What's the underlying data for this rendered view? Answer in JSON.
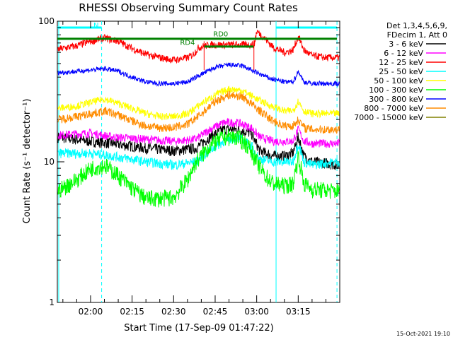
{
  "chart_data": {
    "type": "line",
    "title": "RHESSI Observing Summary Count Rates",
    "xlabel": "Start Time (17-Sep-09 01:47:22)",
    "ylabel": "Count Rate (s⁻¹ detector⁻¹)",
    "yscale": "log",
    "ylim": [
      1,
      100
    ],
    "xlim_minutes": [
      108,
      210
    ],
    "x_tick_labels": [
      "02:00",
      "02:15",
      "02:30",
      "02:45",
      "03:00",
      "03:15"
    ],
    "x_ticks_minutes": [
      120,
      135,
      150,
      165,
      180,
      195
    ],
    "y_tick_labels": [
      "1",
      "10",
      "100"
    ],
    "y_ticks": [
      1,
      10,
      100
    ],
    "legend_header": [
      "Det 1,3,4,5,6,9,",
      "FDecim 1, Att 0"
    ],
    "legend_placement": "right",
    "series": [
      {
        "name": "3 - 6 keV",
        "color": "#000000",
        "x": [
          108,
          120,
          128,
          140,
          150,
          158,
          163,
          168,
          173,
          178,
          181,
          186,
          190,
          193,
          195,
          197,
          200,
          205,
          209
        ],
        "y": [
          15,
          14,
          13.5,
          12.5,
          12,
          12.5,
          15,
          17,
          17,
          16,
          12,
          11,
          11,
          11.5,
          15,
          11,
          10,
          9.8,
          9.5
        ]
      },
      {
        "name": "6 - 12 keV",
        "color": "#ff00ff",
        "x": [
          108,
          120,
          128,
          140,
          150,
          158,
          163,
          168,
          173,
          178,
          181,
          186,
          190,
          193,
          195,
          197,
          200,
          205,
          209
        ],
        "y": [
          15.5,
          16,
          15,
          14.5,
          14,
          14.5,
          17,
          19,
          19,
          17.5,
          15,
          14,
          14,
          14,
          17,
          14,
          13.5,
          13.5,
          13.5
        ]
      },
      {
        "name": "12 - 25 keV",
        "color": "#ff0000",
        "x": [
          108,
          115,
          120,
          125,
          130,
          135,
          140,
          145,
          150,
          155,
          157,
          159,
          163,
          170,
          175,
          179,
          180,
          183,
          186,
          190,
          193,
          195,
          197,
          200,
          205,
          209
        ],
        "y": [
          63,
          67,
          72,
          76,
          72,
          64,
          58,
          55,
          53,
          55,
          58,
          65,
          68,
          68,
          68,
          68,
          85,
          75,
          65,
          60,
          62,
          78,
          62,
          57,
          55,
          55
        ]
      },
      {
        "name": "25 - 50 keV",
        "color": "#00ffff",
        "x": [
          108,
          120,
          128,
          140,
          150,
          158,
          163,
          168,
          173,
          178,
          181,
          186,
          190,
          193,
          195,
          197,
          200,
          205,
          209
        ],
        "y": [
          11.5,
          11.5,
          11,
          10,
          9.5,
          10,
          12,
          14,
          15,
          13,
          10.5,
          10,
          10,
          10,
          13.5,
          10,
          9.5,
          9.8,
          10
        ]
      },
      {
        "name": "50 - 100 keV",
        "color": "#ffff00",
        "x": [
          108,
          115,
          120,
          125,
          130,
          135,
          140,
          145,
          150,
          155,
          160,
          165,
          170,
          175,
          180,
          185,
          190,
          193,
          195,
          197,
          200,
          205,
          209
        ],
        "y": [
          24,
          25,
          26.5,
          28,
          26,
          24,
          22,
          21,
          21,
          22,
          26,
          30,
          33,
          32,
          28,
          25,
          23,
          23,
          27,
          23,
          22,
          22,
          22
        ]
      },
      {
        "name": "100 - 300 keV",
        "color": "#00ff00",
        "x": [
          108,
          115,
          120,
          125,
          130,
          135,
          140,
          145,
          150,
          155,
          158,
          163,
          168,
          173,
          177,
          180,
          183,
          186,
          190,
          193,
          195,
          197,
          200,
          205,
          209
        ],
        "y": [
          6.2,
          7.5,
          9,
          9.5,
          8,
          6.5,
          5.5,
          5.5,
          5.6,
          7.5,
          10,
          13,
          15,
          15,
          13,
          10,
          8,
          7,
          6.8,
          7,
          11,
          7,
          6.4,
          6.3,
          6.2
        ]
      },
      {
        "name": "300 - 800 keV",
        "color": "#0000ff",
        "x": [
          108,
          115,
          120,
          125,
          130,
          135,
          140,
          145,
          150,
          155,
          160,
          165,
          170,
          175,
          180,
          185,
          190,
          193,
          195,
          197,
          200,
          205,
          209
        ],
        "y": [
          43,
          44,
          45,
          46,
          44,
          40,
          37,
          36,
          36,
          37,
          42,
          47,
          49,
          48,
          43,
          39,
          37,
          37,
          44,
          37,
          36,
          36,
          36
        ]
      },
      {
        "name": "800 - 7000 keV",
        "color": "#ff8c00",
        "x": [
          108,
          115,
          120,
          125,
          130,
          135,
          140,
          145,
          150,
          155,
          160,
          165,
          170,
          175,
          180,
          185,
          190,
          193,
          195,
          197,
          200,
          205,
          209
        ],
        "y": [
          20,
          21,
          22,
          23,
          21.5,
          19.5,
          18,
          17.5,
          17.5,
          18.5,
          22,
          27,
          30,
          29,
          24,
          20,
          18,
          18,
          20,
          17.5,
          17,
          17,
          17
        ]
      },
      {
        "name": "7000 - 15000 keV",
        "color": "#808000",
        "x": [
          108,
          209
        ],
        "y": [
          75,
          75
        ]
      }
    ],
    "annotations": [
      {
        "text": "N",
        "color": "#00ffff",
        "x": 122,
        "y": 90
      },
      {
        "text": "RD0",
        "color": "#008000",
        "x": 167,
        "y": 78
      },
      {
        "text": "RD4",
        "color": "#008000",
        "x": 155,
        "y": 68
      }
    ],
    "night_segments_minutes": [
      [
        108,
        124
      ],
      [
        187,
        209
      ]
    ],
    "vertical_solid_minutes": [
      108.5,
      187
    ],
    "vertical_dashed_minutes": [
      124,
      209
    ],
    "decimation_lines": [
      {
        "x0": 108,
        "x1": 209,
        "y": 75,
        "color": "#008000"
      },
      {
        "x0": 161,
        "x1": 179,
        "y": 66,
        "color": "#008000"
      }
    ],
    "footer_timestamp": "15-Oct-2021 19:10"
  }
}
